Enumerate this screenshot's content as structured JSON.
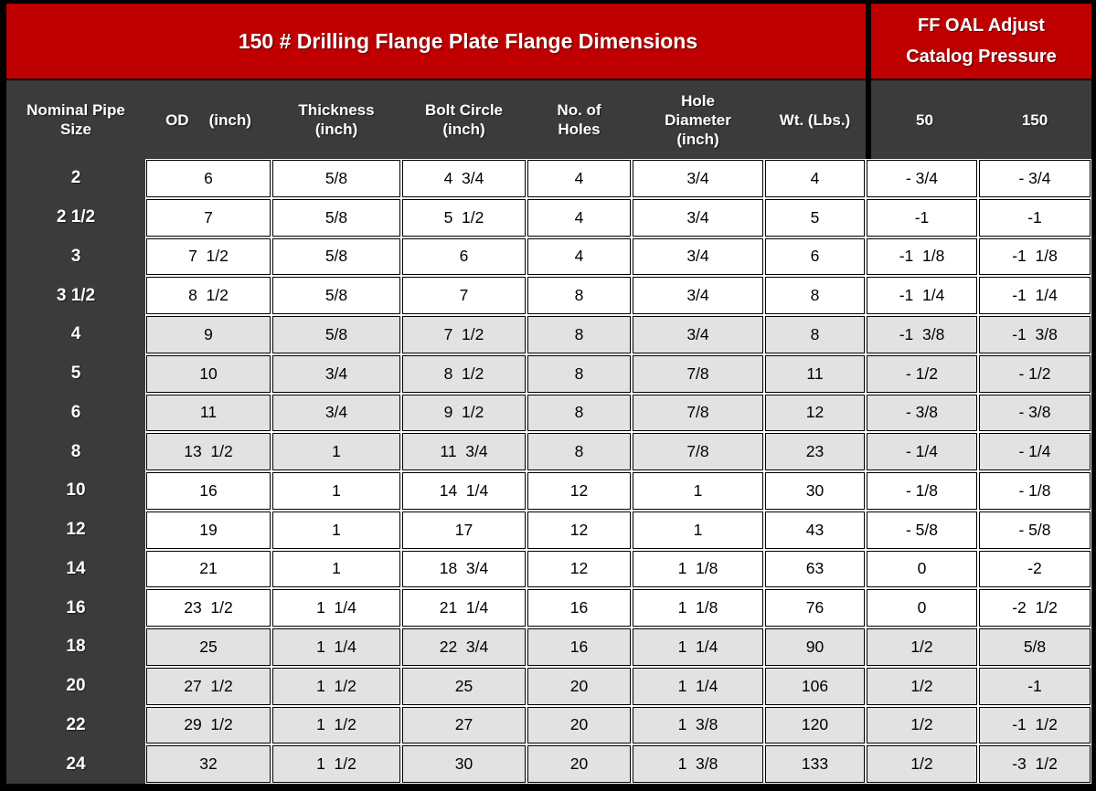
{
  "title": "150 # Drilling Flange Plate Flange Dimensions",
  "banner_right": {
    "line1": "FF OAL Adjust",
    "line2": "Catalog Pressure"
  },
  "columns": {
    "pipe_size": "Nominal Pipe\nSize",
    "od": "OD",
    "od_unit": "(inch)",
    "thickness": "Thickness\n(inch)",
    "bolt_circle": "Bolt Circle\n(inch)",
    "holes": "No. of\nHoles",
    "hole_diameter": "Hole\nDiameter\n(inch)",
    "weight": "Wt. (Lbs.)",
    "adj50": "50",
    "adj150": "150"
  },
  "colors": {
    "banner_red": "#C00000",
    "header_gray": "#3B3B3B",
    "shaded_row_gray": "#E2E2E2",
    "border_black": "#000000",
    "header_text": "#FFFFFF",
    "data_text": "#000000"
  },
  "rows": [
    {
      "size": "2",
      "od": "6",
      "thickness": "5/8",
      "bolt_circle": "4  3/4",
      "holes": "4",
      "hole_dia": "3/4",
      "wt": "4",
      "adj50": "- 3/4",
      "adj150": "- 3/4",
      "shaded": false
    },
    {
      "size": "2 1/2",
      "od": "7",
      "thickness": "5/8",
      "bolt_circle": "5  1/2",
      "holes": "4",
      "hole_dia": "3/4",
      "wt": "5",
      "adj50": "-1",
      "adj150": "-1",
      "shaded": false
    },
    {
      "size": "3",
      "od": "7  1/2",
      "thickness": "5/8",
      "bolt_circle": "6",
      "holes": "4",
      "hole_dia": "3/4",
      "wt": "6",
      "adj50": "-1  1/8",
      "adj150": "-1  1/8",
      "shaded": false
    },
    {
      "size": "3 1/2",
      "od": "8  1/2",
      "thickness": "5/8",
      "bolt_circle": "7",
      "holes": "8",
      "hole_dia": "3/4",
      "wt": "8",
      "adj50": "-1  1/4",
      "adj150": "-1  1/4",
      "shaded": false
    },
    {
      "size": "4",
      "od": "9",
      "thickness": "5/8",
      "bolt_circle": "7  1/2",
      "holes": "8",
      "hole_dia": "3/4",
      "wt": "8",
      "adj50": "-1  3/8",
      "adj150": "-1  3/8",
      "shaded": true
    },
    {
      "size": "5",
      "od": "10",
      "thickness": "3/4",
      "bolt_circle": "8  1/2",
      "holes": "8",
      "hole_dia": "7/8",
      "wt": "11",
      "adj50": "- 1/2",
      "adj150": "- 1/2",
      "shaded": true
    },
    {
      "size": "6",
      "od": "11",
      "thickness": "3/4",
      "bolt_circle": "9  1/2",
      "holes": "8",
      "hole_dia": "7/8",
      "wt": "12",
      "adj50": "- 3/8",
      "adj150": "- 3/8",
      "shaded": true
    },
    {
      "size": "8",
      "od": "13  1/2",
      "thickness": "1",
      "bolt_circle": "11  3/4",
      "holes": "8",
      "hole_dia": "7/8",
      "wt": "23",
      "adj50": "- 1/4",
      "adj150": "- 1/4",
      "shaded": true
    },
    {
      "size": "10",
      "od": "16",
      "thickness": "1",
      "bolt_circle": "14  1/4",
      "holes": "12",
      "hole_dia": "1",
      "wt": "30",
      "adj50": "- 1/8",
      "adj150": "- 1/8",
      "shaded": false
    },
    {
      "size": "12",
      "od": "19",
      "thickness": "1",
      "bolt_circle": "17",
      "holes": "12",
      "hole_dia": "1",
      "wt": "43",
      "adj50": "- 5/8",
      "adj150": "- 5/8",
      "shaded": false
    },
    {
      "size": "14",
      "od": "21",
      "thickness": "1",
      "bolt_circle": "18  3/4",
      "holes": "12",
      "hole_dia": "1  1/8",
      "wt": "63",
      "adj50": "0",
      "adj150": "-2",
      "shaded": false
    },
    {
      "size": "16",
      "od": "23  1/2",
      "thickness": "1  1/4",
      "bolt_circle": "21  1/4",
      "holes": "16",
      "hole_dia": "1  1/8",
      "wt": "76",
      "adj50": "0",
      "adj150": "-2  1/2",
      "shaded": false
    },
    {
      "size": "18",
      "od": "25",
      "thickness": "1  1/4",
      "bolt_circle": "22  3/4",
      "holes": "16",
      "hole_dia": "1  1/4",
      "wt": "90",
      "adj50": "1/2",
      "adj150": "5/8",
      "shaded": true
    },
    {
      "size": "20",
      "od": "27  1/2",
      "thickness": "1  1/2",
      "bolt_circle": "25",
      "holes": "20",
      "hole_dia": "1  1/4",
      "wt": "106",
      "adj50": "1/2",
      "adj150": "-1",
      "shaded": true
    },
    {
      "size": "22",
      "od": "29  1/2",
      "thickness": "1  1/2",
      "bolt_circle": "27",
      "holes": "20",
      "hole_dia": "1  3/8",
      "wt": "120",
      "adj50": "1/2",
      "adj150": "-1  1/2",
      "shaded": true
    },
    {
      "size": "24",
      "od": "32",
      "thickness": "1  1/2",
      "bolt_circle": "30",
      "holes": "20",
      "hole_dia": "1  3/8",
      "wt": "133",
      "adj50": "1/2",
      "adj150": "-3  1/2",
      "shaded": true
    }
  ]
}
